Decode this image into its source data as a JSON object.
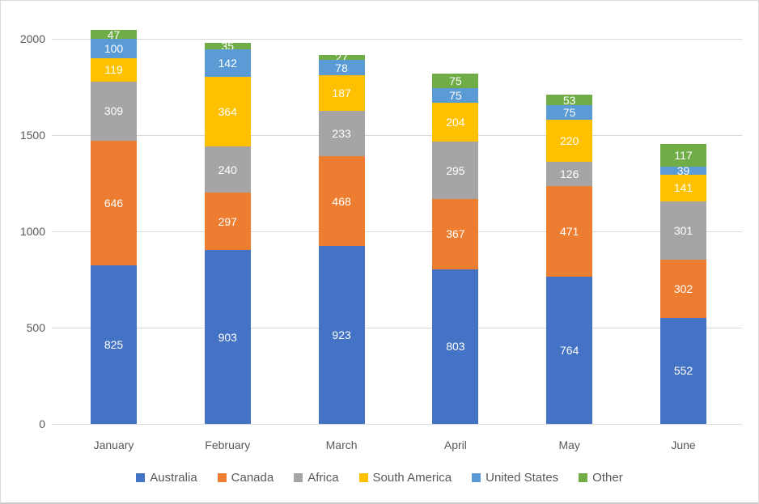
{
  "chart_data": {
    "type": "bar",
    "stacked": true,
    "title": "",
    "xlabel": "",
    "ylabel": "",
    "categories": [
      "January",
      "February",
      "March",
      "April",
      "May",
      "June"
    ],
    "series": [
      {
        "name": "Australia",
        "color": "#4472C4",
        "values": [
          825,
          903,
          923,
          803,
          764,
          552
        ]
      },
      {
        "name": "Canada",
        "color": "#ED7D31",
        "values": [
          646,
          297,
          468,
          367,
          471,
          302
        ]
      },
      {
        "name": "Africa",
        "color": "#A5A5A5",
        "values": [
          309,
          240,
          233,
          295,
          126,
          301
        ]
      },
      {
        "name": "South America",
        "color": "#FFC000",
        "values": [
          119,
          364,
          187,
          204,
          220,
          141
        ]
      },
      {
        "name": "United States",
        "color": "#5B9BD5",
        "values": [
          100,
          142,
          78,
          75,
          75,
          39
        ]
      },
      {
        "name": "Other",
        "color": "#70AD47",
        "values": [
          47,
          35,
          27,
          75,
          53,
          117
        ]
      }
    ],
    "y_axis": {
      "min": 0,
      "max": 2000,
      "ticks": [
        0,
        500,
        1000,
        1500,
        2000
      ]
    },
    "grid": true,
    "legend_position": "bottom",
    "data_label_color": "#FFFFFF",
    "axis_text_color": "#595959",
    "gridline_color": "#D9D9D9"
  }
}
